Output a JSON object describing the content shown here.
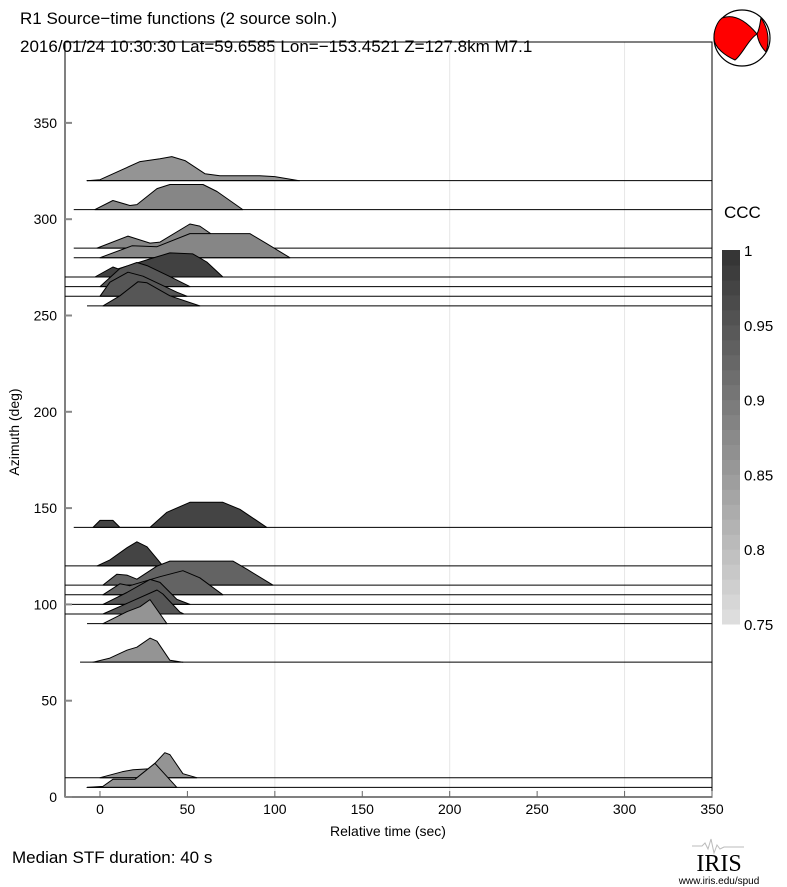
{
  "chart_data": {
    "type": "area",
    "title_line1": "R1 Source−time functions (2 source soln.)",
    "title_line2": "2016/01/24 10:30:30   Lat=59.6585 Lon=−153.4521   Z=127.8km   M7.1",
    "xlabel": "Relative time (sec)",
    "ylabel": "Azimuth (deg)",
    "xlim": [
      -20,
      350
    ],
    "ylim": [
      0,
      392
    ],
    "xticks": [
      0,
      50,
      100,
      150,
      200,
      250,
      300,
      350
    ],
    "yticks": [
      0,
      50,
      100,
      150,
      200,
      250,
      300,
      350
    ],
    "grid_x": [
      100,
      200,
      300
    ],
    "footer": "Median STF duration: 40 s",
    "colorbar": {
      "label": "CCC",
      "min": 0.75,
      "max": 1,
      "ticks": [
        "1",
        "0.95",
        "0.9",
        "0.85",
        "0.8",
        "0.75"
      ],
      "tick_values": [
        1,
        0.95,
        0.9,
        0.85,
        0.8,
        0.75
      ],
      "bands": 25
    },
    "series": [
      {
        "azimuth": 320,
        "start": -7.4,
        "ccc": 0.86,
        "points": [
          [
            -7.4,
            0
          ],
          [
            0,
            0.5
          ],
          [
            11.4,
            5.2
          ],
          [
            22.9,
            9.9
          ],
          [
            34.3,
            11.4
          ],
          [
            41.1,
            12.5
          ],
          [
            48.6,
            10.4
          ],
          [
            60,
            3.6
          ],
          [
            68.6,
            2.6
          ],
          [
            91.4,
            2.6
          ],
          [
            100,
            2.1
          ],
          [
            114,
            0
          ]
        ]
      },
      {
        "azimuth": 305,
        "start": -15,
        "ccc": 0.88,
        "points": [
          [
            -2.9,
            0
          ],
          [
            7.4,
            4.7
          ],
          [
            17.1,
            2.1
          ],
          [
            21.1,
            2.6
          ],
          [
            32.6,
            10.9
          ],
          [
            40,
            13
          ],
          [
            58.9,
            13
          ],
          [
            66.9,
            9.4
          ],
          [
            81.7,
            0
          ]
        ]
      },
      {
        "azimuth": 285,
        "start": -15,
        "ccc": 0.88,
        "points": [
          [
            -1.7,
            0
          ],
          [
            16,
            6.2
          ],
          [
            28.6,
            2.6
          ],
          [
            34.3,
            3.1
          ],
          [
            51.4,
            12.5
          ],
          [
            57.1,
            11.4
          ],
          [
            62.9,
            7.8
          ],
          [
            71.4,
            0
          ]
        ]
      },
      {
        "azimuth": 280,
        "start": -15,
        "ccc": 0.88,
        "points": [
          [
            0,
            0
          ],
          [
            18.3,
            6.2
          ],
          [
            32.6,
            5.7
          ],
          [
            51.4,
            12.5
          ],
          [
            85.7,
            12.5
          ],
          [
            95.4,
            7.3
          ],
          [
            108.6,
            0
          ]
        ]
      },
      {
        "azimuth": 270,
        "start": -20,
        "ccc": 0.98,
        "points": [
          [
            -2.9,
            0
          ],
          [
            7.4,
            5.2
          ],
          [
            10.3,
            4.2
          ],
          [
            28.6,
            9.4
          ],
          [
            40,
            12.5
          ],
          [
            53.1,
            12
          ],
          [
            61.1,
            7.8
          ],
          [
            70.3,
            0
          ]
        ]
      },
      {
        "azimuth": 265,
        "start": -20,
        "ccc": 0.95,
        "points": [
          [
            0,
            0
          ],
          [
            11.4,
            9.4
          ],
          [
            21.1,
            12.5
          ],
          [
            26.9,
            10.9
          ],
          [
            40,
            5.2
          ],
          [
            51.4,
            0
          ]
        ]
      },
      {
        "azimuth": 260,
        "start": -20,
        "ccc": 0.95,
        "points": [
          [
            0,
            0
          ],
          [
            5.7,
            7.3
          ],
          [
            16,
            12.5
          ],
          [
            24.6,
            10.4
          ],
          [
            44,
            2.1
          ],
          [
            49.7,
            0
          ]
        ]
      },
      {
        "azimuth": 255,
        "start": -7.4,
        "ccc": 0.95,
        "points": [
          [
            1.7,
            0
          ],
          [
            11.4,
            5.2
          ],
          [
            21.7,
            12.5
          ],
          [
            26.9,
            12
          ],
          [
            40,
            5.2
          ],
          [
            57.1,
            0
          ]
        ]
      },
      {
        "azimuth": 140,
        "start": -15,
        "ccc": 0.975,
        "points": [
          [
            -4,
            0
          ],
          [
            0,
            3.6
          ],
          [
            7.4,
            3.6
          ],
          [
            11.4,
            0
          ],
          [
            28.6,
            0
          ],
          [
            38.3,
            7.8
          ],
          [
            51.4,
            13
          ],
          [
            70.3,
            13
          ],
          [
            80,
            9.4
          ],
          [
            95.4,
            0
          ]
        ]
      },
      {
        "azimuth": 120,
        "start": -20,
        "ccc": 0.975,
        "points": [
          [
            -1.7,
            0
          ],
          [
            5.7,
            3.1
          ],
          [
            15.4,
            9.4
          ],
          [
            21.1,
            12.5
          ],
          [
            26.9,
            9.9
          ],
          [
            36,
            0
          ]
        ]
      },
      {
        "azimuth": 110,
        "start": -20,
        "ccc": 0.93,
        "points": [
          [
            1.7,
            0
          ],
          [
            9.7,
            5.7
          ],
          [
            15.4,
            5.2
          ],
          [
            21.1,
            3.1
          ],
          [
            32.6,
            9.9
          ],
          [
            40,
            12.5
          ],
          [
            76,
            12.5
          ],
          [
            84,
            8.3
          ],
          [
            98.9,
            0
          ]
        ]
      },
      {
        "azimuth": 105,
        "start": -20,
        "ccc": 0.93,
        "points": [
          [
            1.7,
            0
          ],
          [
            11.4,
            5.7
          ],
          [
            17.1,
            4.7
          ],
          [
            34.3,
            9.4
          ],
          [
            47.4,
            12.5
          ],
          [
            57.1,
            8.8
          ],
          [
            70.3,
            0
          ]
        ]
      },
      {
        "azimuth": 100,
        "start": -20,
        "ccc": 0.95,
        "points": [
          [
            1.7,
            0
          ],
          [
            15.4,
            6.2
          ],
          [
            28.6,
            13
          ],
          [
            34.3,
            11.4
          ],
          [
            44,
            2.6
          ],
          [
            51.4,
            0
          ]
        ]
      },
      {
        "azimuth": 95,
        "start": -20,
        "ccc": 0.95,
        "points": [
          [
            1.7,
            0
          ],
          [
            17.1,
            6.2
          ],
          [
            32.6,
            12.5
          ],
          [
            36,
            10.4
          ],
          [
            45.7,
            1
          ],
          [
            48,
            0
          ]
        ]
      },
      {
        "azimuth": 90,
        "start": -7.4,
        "ccc": 0.86,
        "points": [
          [
            1.7,
            0
          ],
          [
            15.4,
            6.2
          ],
          [
            22.9,
            8.8
          ],
          [
            28.6,
            12.5
          ],
          [
            32.6,
            7.3
          ],
          [
            38.3,
            0
          ]
        ]
      },
      {
        "azimuth": 70,
        "start": -11.4,
        "ccc": 0.86,
        "points": [
          [
            -4,
            0
          ],
          [
            5.7,
            2.1
          ],
          [
            15.4,
            6.2
          ],
          [
            21.1,
            7.8
          ],
          [
            28.6,
            12.5
          ],
          [
            32.6,
            10.9
          ],
          [
            40,
            1
          ],
          [
            47.4,
            0
          ]
        ]
      },
      {
        "azimuth": 10,
        "start": -20,
        "ccc": 0.86,
        "points": [
          [
            0,
            0
          ],
          [
            12.6,
            3.1
          ],
          [
            18.9,
            4.2
          ],
          [
            28.6,
            4.7
          ],
          [
            37.1,
            13
          ],
          [
            40,
            12
          ],
          [
            47.4,
            2.1
          ],
          [
            55.4,
            0
          ]
        ]
      },
      {
        "azimuth": 5,
        "start": -7.4,
        "ccc": 0.86,
        "points": [
          [
            -7.4,
            0
          ],
          [
            1.7,
            0.5
          ],
          [
            7.4,
            4.2
          ],
          [
            20,
            4.2
          ],
          [
            31.4,
            12.5
          ],
          [
            44,
            0
          ]
        ]
      }
    ]
  },
  "logo": {
    "name": "IRIS",
    "url_text": "www.iris.edu/spud"
  },
  "colors": {
    "beachball_fill": "#ff0000",
    "grid": "#e6e6e6"
  }
}
